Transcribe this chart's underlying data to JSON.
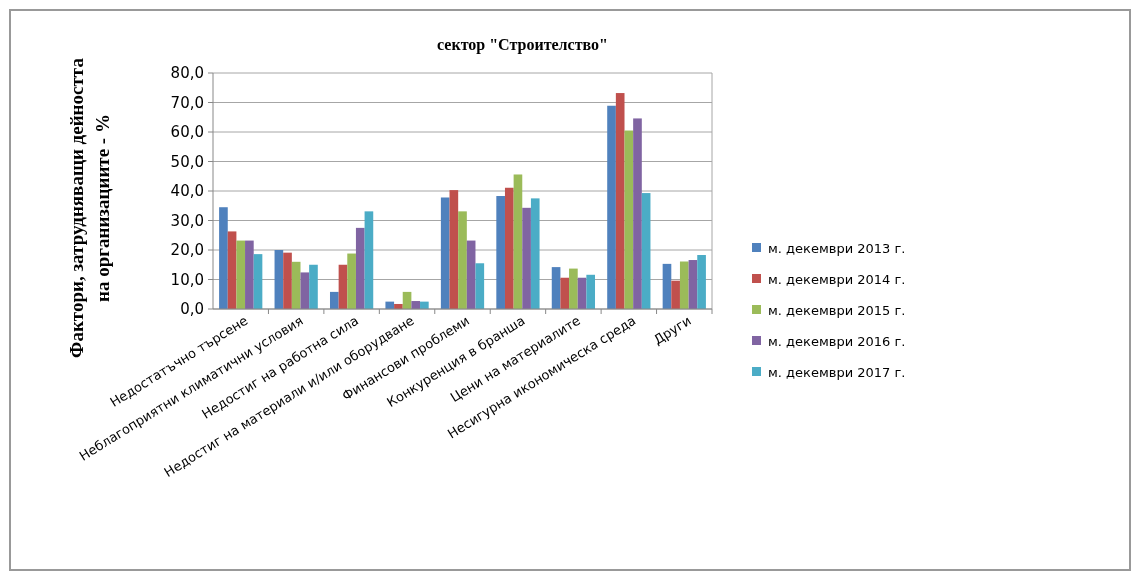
{
  "chart_data": {
    "type": "bar",
    "title": "сектор \"Строителство\"",
    "ylabel": "Фактори, затрудняващи дейността\nна организациите - %",
    "categories": [
      "Недостатъчно търсене",
      "Неблагоприятни климатични условия",
      "Недостиг на работна сила",
      "Недостиг на материали и/или оборудване",
      "Финансови проблеми",
      "Конкуренция в бранша",
      "Цени на материалите",
      "Несигурна икономическа среда",
      "Други"
    ],
    "series": [
      {
        "name": "м. декември 2013 г.",
        "color": "#4f81bd",
        "values": [
          34.5,
          20.0,
          5.8,
          2.5,
          37.8,
          38.3,
          14.2,
          68.9,
          15.3
        ]
      },
      {
        "name": "м. декември 2014 г.",
        "color": "#c0504d",
        "values": [
          26.3,
          19.1,
          15.0,
          1.7,
          40.3,
          41.1,
          10.6,
          73.2,
          9.6
        ]
      },
      {
        "name": "м. декември 2015 г.",
        "color": "#9bbb59",
        "values": [
          23.2,
          16.0,
          18.8,
          5.8,
          33.1,
          45.6,
          13.7,
          60.5,
          16.1
        ]
      },
      {
        "name": "м. декември 2016 г.",
        "color": "#8064a2",
        "values": [
          23.2,
          12.4,
          27.5,
          2.7,
          23.2,
          34.3,
          10.6,
          64.6,
          16.6
        ]
      },
      {
        "name": "м. декември 2017 г.",
        "color": "#4bacc6",
        "values": [
          18.6,
          15.0,
          33.1,
          2.5,
          15.5,
          37.5,
          11.6,
          39.3,
          18.3
        ]
      }
    ],
    "ylim": [
      0,
      80
    ],
    "yticks": [
      {
        "value": 0,
        "label": "0,0"
      },
      {
        "value": 10,
        "label": "10,0"
      },
      {
        "value": 20,
        "label": "20,0"
      },
      {
        "value": 30,
        "label": "30,0"
      },
      {
        "value": 40,
        "label": "40,0"
      },
      {
        "value": 50,
        "label": "50,0"
      },
      {
        "value": 60,
        "label": "60,0"
      },
      {
        "value": 70,
        "label": "70,0"
      },
      {
        "value": 80,
        "label": "80,0"
      }
    ],
    "grid": "y",
    "legend": "right"
  }
}
